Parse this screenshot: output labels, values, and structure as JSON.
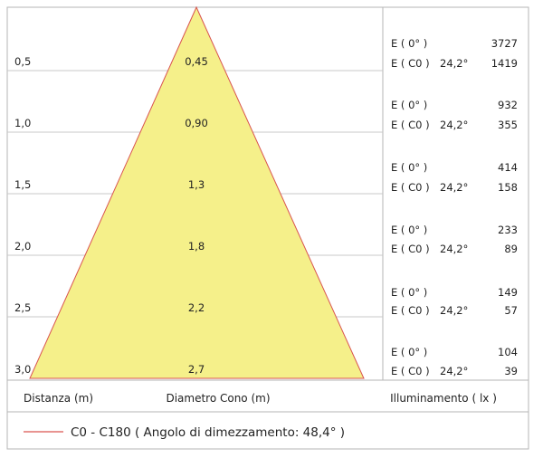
{
  "rows": [
    {
      "distance": "0,5",
      "diameter": "0,45",
      "e0_label": "E ( 0° )",
      "e0_value": "3727",
      "ec0_label": "E ( C0 )",
      "angle": "24,2°",
      "ec0_value": "1419"
    },
    {
      "distance": "1,0",
      "diameter": "0,90",
      "e0_label": "E ( 0° )",
      "e0_value": "932",
      "ec0_label": "E ( C0 )",
      "angle": "24,2°",
      "ec0_value": "355"
    },
    {
      "distance": "1,5",
      "diameter": "1,3",
      "e0_label": "E ( 0° )",
      "e0_value": "414",
      "ec0_label": "E ( C0 )",
      "angle": "24,2°",
      "ec0_value": "158"
    },
    {
      "distance": "2,0",
      "diameter": "1,8",
      "e0_label": "E ( 0° )",
      "e0_value": "233",
      "ec0_label": "E ( C0 )",
      "angle": "24,2°",
      "ec0_value": "89"
    },
    {
      "distance": "2,5",
      "diameter": "2,2",
      "e0_label": "E ( 0° )",
      "e0_value": "149",
      "ec0_label": "E ( C0 )",
      "angle": "24,2°",
      "ec0_value": "57"
    },
    {
      "distance": "3,0",
      "diameter": "2,7",
      "e0_label": "E ( 0° )",
      "e0_value": "104",
      "ec0_label": "E ( C0 )",
      "angle": "24,2°",
      "ec0_value": "39"
    }
  ],
  "headers": {
    "distance": "Distanza (m)",
    "diameter": "Diametro Cono (m)",
    "illuminance": "Illuminamento ( lx )"
  },
  "legend": {
    "text": "C0 - C180  ( Angolo di dimezzamento: 48,4° )"
  },
  "colors": {
    "cone_fill": "#f5f08a",
    "cone_stroke": "#d9534f",
    "grid": "#c8c8c8",
    "frame": "#b5b5b5"
  }
}
